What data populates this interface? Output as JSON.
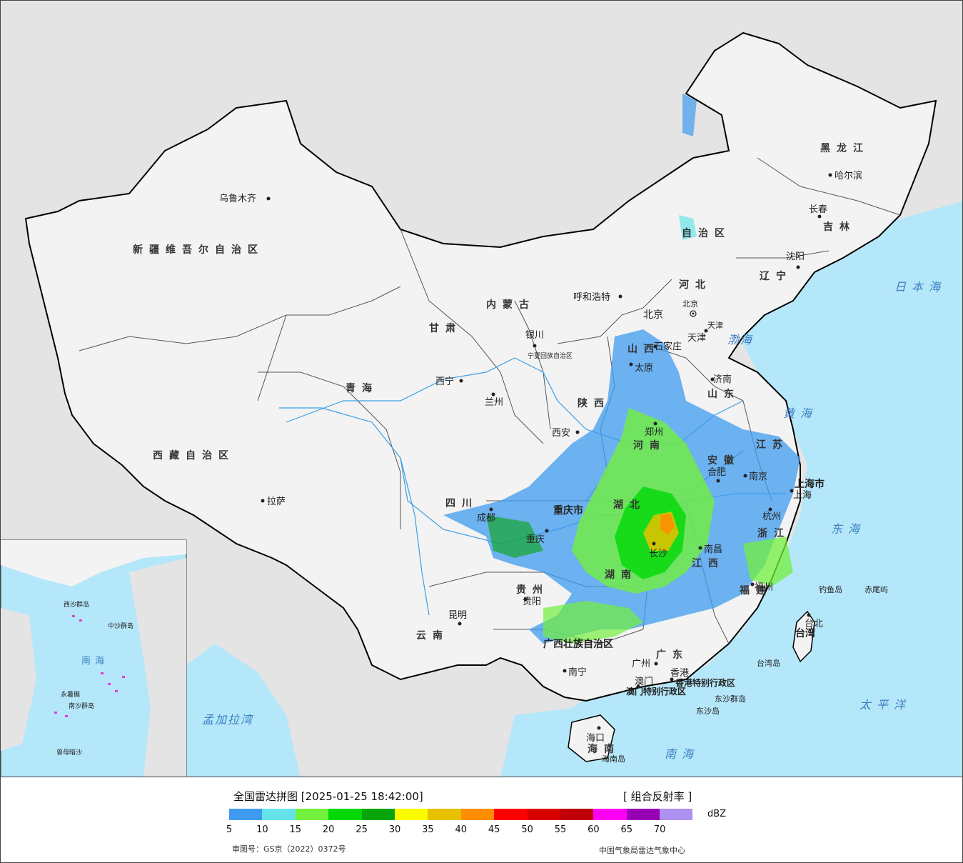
{
  "legend": {
    "title": "全国雷达拼图 [2025-01-25 18:42:00]",
    "product": "[ 组合反射率 ]",
    "unit": "dBZ",
    "review_number": "审图号：GS京（2022）0372号",
    "agency": "中国气象局雷达气象中心",
    "ticks": [
      "5",
      "10",
      "15",
      "20",
      "25",
      "30",
      "35",
      "40",
      "45",
      "50",
      "55",
      "60",
      "65",
      "70"
    ],
    "colors": [
      "#3f9bef",
      "#66e3ea",
      "#72f03d",
      "#01d806",
      "#07a40c",
      "#fdfb00",
      "#e7c100",
      "#fe8d00",
      "#fc0102",
      "#d70100",
      "#bf0006",
      "#fd00f6",
      "#9700b5",
      "#ad90f0"
    ]
  },
  "map": {
    "provinces": [
      {
        "name": "新疆维吾尔自治区"
      },
      {
        "name": "西藏自治区"
      },
      {
        "name": "青海"
      },
      {
        "name": "甘肃"
      },
      {
        "name": "内蒙古"
      },
      {
        "name": "黑龙江"
      },
      {
        "name": "吉林"
      },
      {
        "name": "辽宁"
      },
      {
        "name": "河北"
      },
      {
        "name": "山西"
      },
      {
        "name": "陕西"
      },
      {
        "name": "四川"
      },
      {
        "name": "云南"
      },
      {
        "name": "贵州"
      },
      {
        "name": "河南"
      },
      {
        "name": "湖北"
      },
      {
        "name": "湖南"
      },
      {
        "name": "江西"
      },
      {
        "name": "山东"
      },
      {
        "name": "江苏"
      },
      {
        "name": "安徽"
      },
      {
        "name": "浙江"
      },
      {
        "name": "福建"
      },
      {
        "name": "广东"
      },
      {
        "name": "广西壮族自治区"
      },
      {
        "name": "海南"
      },
      {
        "name": "台湾"
      },
      {
        "name": "上海市"
      },
      {
        "name": "重庆市"
      },
      {
        "name": "宁夏回族自治区"
      },
      {
        "name": "北京"
      },
      {
        "name": "天津"
      },
      {
        "name": "香港特别行政区"
      },
      {
        "name": "澳门特别行政区"
      },
      {
        "name": "自治区"
      }
    ],
    "cities": [
      {
        "name": "乌鲁木齐"
      },
      {
        "name": "拉萨"
      },
      {
        "name": "西宁"
      },
      {
        "name": "兰州"
      },
      {
        "name": "银川"
      },
      {
        "name": "呼和浩特"
      },
      {
        "name": "哈尔滨"
      },
      {
        "name": "长春"
      },
      {
        "name": "沈阳"
      },
      {
        "name": "北京"
      },
      {
        "name": "天津"
      },
      {
        "name": "石家庄"
      },
      {
        "name": "太原"
      },
      {
        "name": "济南"
      },
      {
        "name": "郑州"
      },
      {
        "name": "西安"
      },
      {
        "name": "成都"
      },
      {
        "name": "重庆"
      },
      {
        "name": "贵阳"
      },
      {
        "name": "昆明"
      },
      {
        "name": "南宁"
      },
      {
        "name": "广州"
      },
      {
        "name": "澳门"
      },
      {
        "name": "香港"
      },
      {
        "name": "海口"
      },
      {
        "name": "长沙"
      },
      {
        "name": "南昌"
      },
      {
        "name": "福州"
      },
      {
        "name": "杭州"
      },
      {
        "name": "合肥"
      },
      {
        "name": "南京"
      },
      {
        "name": "上海"
      },
      {
        "name": "台北"
      }
    ],
    "seas": [
      {
        "name": "日本海"
      },
      {
        "name": "黄海"
      },
      {
        "name": "东海"
      },
      {
        "name": "太平洋"
      },
      {
        "name": "南海"
      },
      {
        "name": "孟加拉湾"
      },
      {
        "name": "渤海"
      }
    ],
    "islands": [
      {
        "name": "钓鱼岛"
      },
      {
        "name": "赤尾屿"
      },
      {
        "name": "台湾岛"
      },
      {
        "name": "东沙群岛"
      },
      {
        "name": "东沙岛"
      },
      {
        "name": "海南岛"
      }
    ],
    "inset_labels": [
      {
        "name": "南海"
      },
      {
        "name": "中沙群岛"
      },
      {
        "name": "西沙群岛"
      },
      {
        "name": "南沙群岛"
      },
      {
        "name": "曾母暗沙"
      },
      {
        "name": "永暑礁"
      }
    ]
  }
}
